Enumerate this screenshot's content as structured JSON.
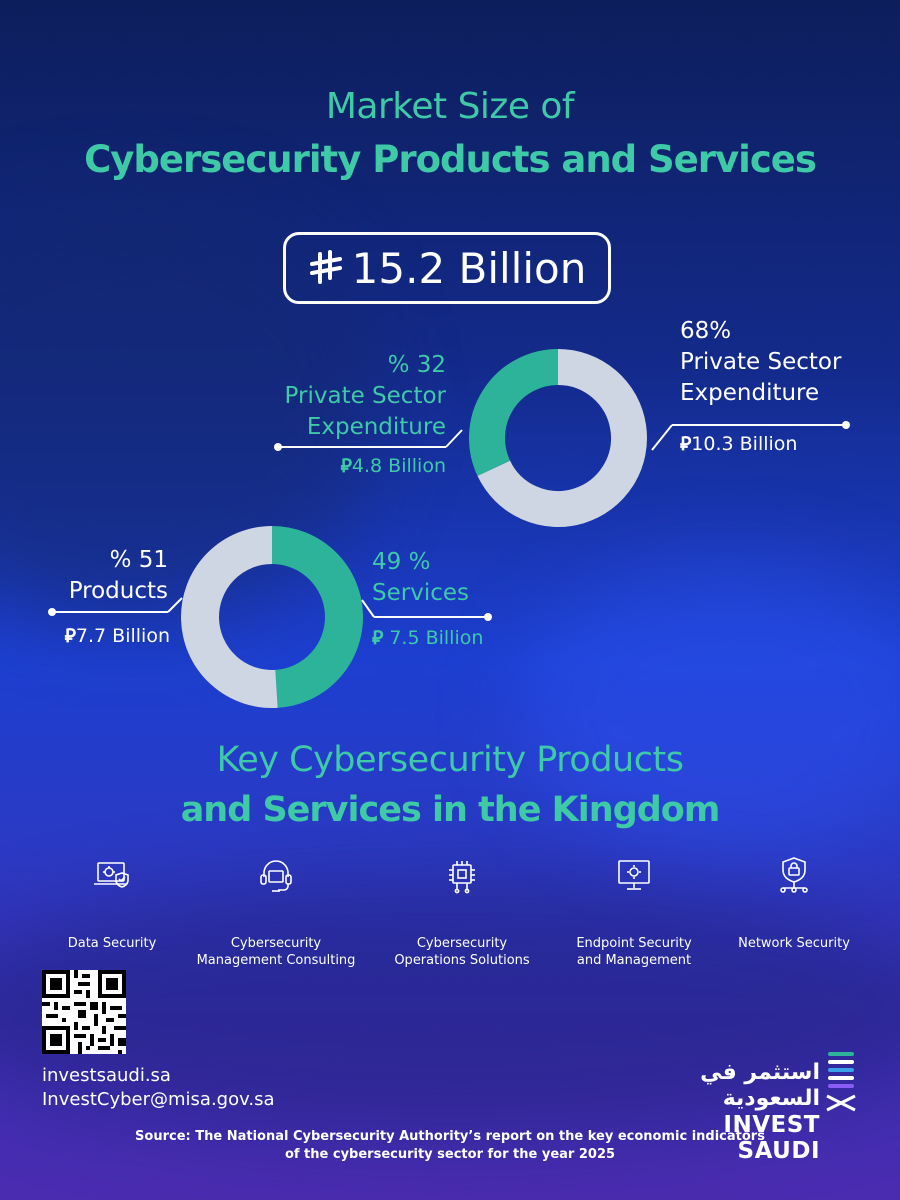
{
  "title": {
    "line1": "Market Size of",
    "line2": "Cybersecurity Products and Services"
  },
  "total": {
    "currency_symbol": "⃁",
    "amount": "15.2 Billion"
  },
  "chart_data": [
    {
      "type": "pie",
      "title": "",
      "slices": [
        {
          "label": "Private Sector Expenditure",
          "percent_label": "% 32",
          "value": 32,
          "amount": "4.8 Billion",
          "color": "#2db39a"
        },
        {
          "label": "Private Sector Expenditure",
          "percent_label": "68%",
          "value": 68,
          "amount": "10.3 Billion",
          "color": "#cfd6e3"
        }
      ]
    },
    {
      "type": "pie",
      "title": "",
      "slices": [
        {
          "label": "Products",
          "percent_label": "% 51",
          "value": 51,
          "amount": "7.7 Billion",
          "color": "#cfd6e3"
        },
        {
          "label": "Services",
          "percent_label": "49 %",
          "value": 49,
          "amount": "7.5 Billion",
          "color": "#2db39a"
        }
      ]
    }
  ],
  "labels": {
    "donut1_left_pct": "% 32",
    "donut1_left_l1": "Private Sector",
    "donut1_left_l2": "Expenditure",
    "donut1_left_amt": "4.8 Billion",
    "donut1_right_pct": "68%",
    "donut1_right_l1": "Private Sector",
    "donut1_right_l2": "Expenditure",
    "donut1_right_amt": "10.3 Billion",
    "donut2_left_pct": "% 51",
    "donut2_left_l1": "Products",
    "donut2_left_amt": "7.7 Billion",
    "donut2_right_pct": "49 %",
    "donut2_right_l1": "Services",
    "donut2_right_amt": " 7.5 Billion"
  },
  "section2": {
    "line1": "Key Cybersecurity Products",
    "line2": "and Services in the Kingdom"
  },
  "categories": [
    {
      "icon": "data-security-icon",
      "l1": "Data Security",
      "l2": ""
    },
    {
      "icon": "consulting-headset-icon",
      "l1": "Cybersecurity",
      "l2": "Management Consulting"
    },
    {
      "icon": "operations-chip-icon",
      "l1": "Cybersecurity",
      "l2": "Operations Solutions"
    },
    {
      "icon": "endpoint-monitor-icon",
      "l1": "Endpoint Security",
      "l2": "and Management"
    },
    {
      "icon": "network-lock-icon",
      "l1": "Network Security",
      "l2": ""
    }
  ],
  "contact": {
    "website": "investsaudi.sa",
    "email": "InvestCyber@misa.gov.sa"
  },
  "logo": {
    "arabic": "استثمر في السعودية",
    "english": "INVEST SAUDI"
  },
  "source": {
    "line1": "Source: The National Cybersecurity Authority’s report on the key economic indicators",
    "line2": "of the cybersecurity sector for the year 2025"
  },
  "colors": {
    "teal": "#3ec9a7",
    "donut_teal": "#2db39a",
    "donut_grey": "#cfd6e3"
  }
}
